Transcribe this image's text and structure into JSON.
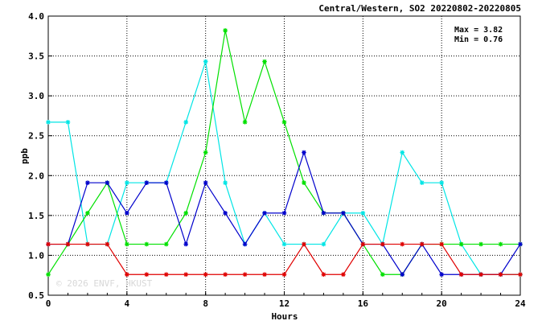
{
  "chart_data": {
    "type": "line",
    "title": "Central/Western, SO2 20220802-20220805",
    "xlabel": "Hours",
    "ylabel": "ppb",
    "xlim": [
      0,
      24
    ],
    "ylim": [
      0.5,
      4.0
    ],
    "x_ticks": [
      "0",
      "4",
      "8",
      "12",
      "16",
      "20",
      "24"
    ],
    "y_ticks": [
      "0.5",
      "1.0",
      "1.5",
      "2.0",
      "2.5",
      "3.0",
      "3.5",
      "4.0"
    ],
    "grid": true,
    "stats": {
      "max": "Max = 3.82",
      "min": "Min = 0.76"
    },
    "watermark": "© 2026  ENVF, HKUST",
    "x": [
      0,
      1,
      2,
      3,
      4,
      5,
      6,
      7,
      8,
      9,
      10,
      11,
      12,
      13,
      14,
      15,
      16,
      17,
      18,
      19,
      20,
      21,
      22,
      23,
      24
    ],
    "series": [
      {
        "color": "#00e5e5",
        "values": [
          2.67,
          2.67,
          1.14,
          1.14,
          1.91,
          1.91,
          1.91,
          2.67,
          3.43,
          1.91,
          1.14,
          1.53,
          1.14,
          1.14,
          1.14,
          1.53,
          1.53,
          1.14,
          2.29,
          1.91,
          1.91,
          1.14,
          0.76,
          0.76,
          0.76
        ]
      },
      {
        "color": "#00e000",
        "values": [
          0.76,
          1.14,
          1.53,
          1.91,
          1.14,
          1.14,
          1.14,
          1.53,
          2.29,
          3.82,
          2.67,
          3.43,
          2.67,
          1.91,
          1.53,
          1.53,
          1.14,
          0.76,
          0.76,
          1.14,
          1.14,
          1.14,
          1.14,
          1.14,
          1.14
        ]
      },
      {
        "color": "#0000cc",
        "values": [
          1.14,
          1.14,
          1.91,
          1.91,
          1.53,
          1.91,
          1.91,
          1.14,
          1.91,
          1.53,
          1.14,
          1.53,
          1.53,
          2.29,
          1.53,
          1.53,
          1.14,
          1.14,
          0.76,
          1.14,
          0.76,
          0.76,
          0.76,
          0.76,
          1.14
        ]
      },
      {
        "color": "#e00000",
        "values": [
          1.14,
          1.14,
          1.14,
          1.14,
          0.76,
          0.76,
          0.76,
          0.76,
          0.76,
          0.76,
          0.76,
          0.76,
          0.76,
          1.14,
          0.76,
          0.76,
          1.14,
          1.14,
          1.14,
          1.14,
          1.14,
          0.76,
          0.76,
          0.76,
          0.76
        ]
      }
    ]
  }
}
